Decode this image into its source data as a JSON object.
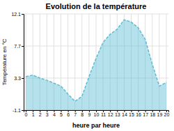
{
  "chart_data": {
    "type": "area",
    "title": "Evolution de la température",
    "xlabel": "heure par heure",
    "ylabel": "Température en °C",
    "x": [
      0,
      1,
      2,
      3,
      4,
      5,
      6,
      7,
      8,
      9,
      10,
      11,
      12,
      13,
      14,
      15,
      16,
      17,
      18,
      19,
      20
    ],
    "values": [
      3.5,
      3.7,
      3.3,
      3.0,
      2.6,
      2.2,
      1.1,
      0.1,
      0.8,
      3.5,
      6.0,
      8.2,
      9.3,
      10.0,
      11.3,
      11.0,
      10.2,
      8.6,
      5.2,
      2.2,
      2.7
    ],
    "xlim": [
      -0.3,
      20.3
    ],
    "xticks": [
      0,
      1,
      2,
      3,
      4,
      5,
      6,
      7,
      8,
      9,
      10,
      11,
      12,
      13,
      14,
      15,
      16,
      17,
      18,
      19,
      20
    ],
    "ylim": [
      -1.1,
      12.1
    ],
    "yticks": [
      -1.1,
      3.3,
      7.7,
      12.1
    ],
    "grid": true,
    "color": "#5bbcd4",
    "line_style": "dashed"
  }
}
